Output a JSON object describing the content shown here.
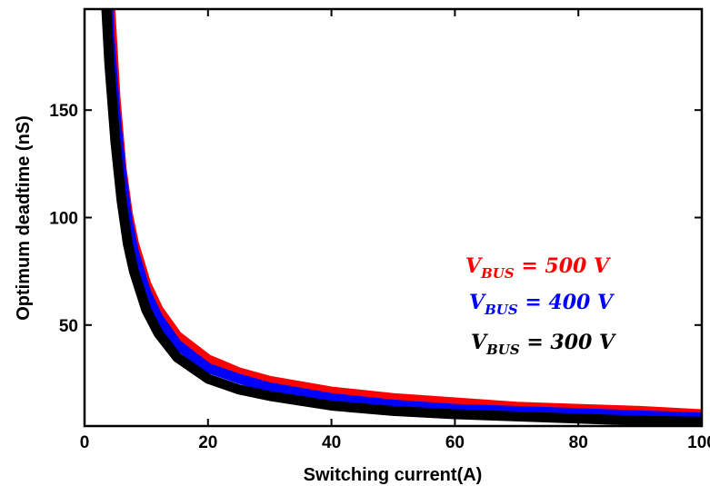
{
  "chart_data": {
    "type": "line",
    "title": "",
    "xlabel": "Switching current(A)",
    "ylabel": "Optimum deadtime (nS)",
    "xlim": [
      0,
      100
    ],
    "ylim": [
      3,
      197
    ],
    "xticks": [
      0,
      20,
      40,
      60,
      80,
      100
    ],
    "yticks": [
      50,
      100,
      150
    ],
    "x": [
      2,
      3,
      4,
      5,
      6,
      7,
      8,
      10,
      12,
      15,
      20,
      25,
      30,
      40,
      50,
      60,
      70,
      80,
      90,
      100
    ],
    "series": [
      {
        "name": "V_BUS = 500 V",
        "color": "#ff0000",
        "values": [
          null,
          null,
          205,
          156,
          123,
          102,
          88,
          69,
          57,
          45,
          34,
          28,
          24,
          19,
          16,
          14,
          12,
          11,
          10,
          8.5
        ]
      },
      {
        "name": "V_BUS = 400 V",
        "color": "#0000ff",
        "values": [
          null,
          254,
          186,
          148,
          120,
          98,
          84,
          65,
          53,
          41,
          30,
          25,
          21,
          16,
          13,
          11,
          10,
          9,
          8,
          7
        ]
      },
      {
        "name": "V_BUS = 300 V",
        "color": "#000000",
        "values": [
          null,
          225,
          172,
          135,
          108,
          88,
          75,
          57,
          46,
          35,
          25,
          20,
          17,
          12.5,
          10,
          8.5,
          7.5,
          6.5,
          5.5,
          5
        ]
      }
    ],
    "legend": {
      "placement": "right",
      "entries": [
        {
          "var": "V",
          "sub": "BUS",
          "rest": " = 500 V",
          "color": "#ff0000"
        },
        {
          "var": "V",
          "sub": "BUS",
          "rest": " = 400 V",
          "color": "#0000ff"
        },
        {
          "var": "V",
          "sub": "BUS",
          "rest": " = 300 V",
          "color": "#000000"
        }
      ]
    },
    "grid": false
  }
}
